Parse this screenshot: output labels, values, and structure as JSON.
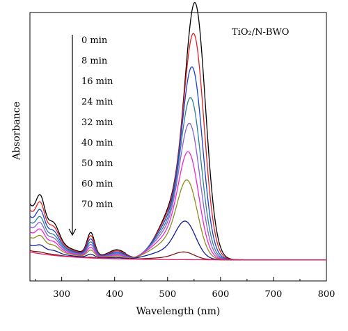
{
  "chart_data": {
    "type": "line",
    "annotation": "TiO₂/N-BWO",
    "xlabel": "Wavelength (nm)",
    "ylabel": "Absorbance",
    "xlim": [
      240,
      800
    ],
    "ylim": [
      -0.12,
      1.6
    ],
    "xticks": [
      300,
      400,
      500,
      600,
      700,
      800
    ],
    "y_ticks_labeled": false,
    "legend_placement": "top-left, ordered top to bottom with downward arrow",
    "legend_arrow": "downward",
    "grid": false,
    "series": [
      {
        "name": "0 min",
        "color": "#000000",
        "scale": 1.0
      },
      {
        "name": "8 min",
        "color": "#e02020",
        "scale": 0.88
      },
      {
        "name": "16 min",
        "color": "#1a3fd0",
        "scale": 0.75
      },
      {
        "name": "24 min",
        "color": "#2c7f96",
        "scale": 0.63
      },
      {
        "name": "32 min",
        "color": "#8a5fd8",
        "scale": 0.53
      },
      {
        "name": "40 min",
        "color": "#f025d0",
        "scale": 0.42
      },
      {
        "name": "50 min",
        "color": "#8c8c20",
        "scale": 0.31
      },
      {
        "name": "60 min",
        "color": "#101c90",
        "scale": 0.15
      },
      {
        "name": "70 min",
        "color": "#7a1515",
        "scale": 0.03
      }
    ],
    "baseline_series": {
      "color": "#e8206a"
    },
    "peak_wavelength_nm": 553,
    "uv_peaks_nm": [
      260,
      285,
      355,
      405
    ]
  }
}
